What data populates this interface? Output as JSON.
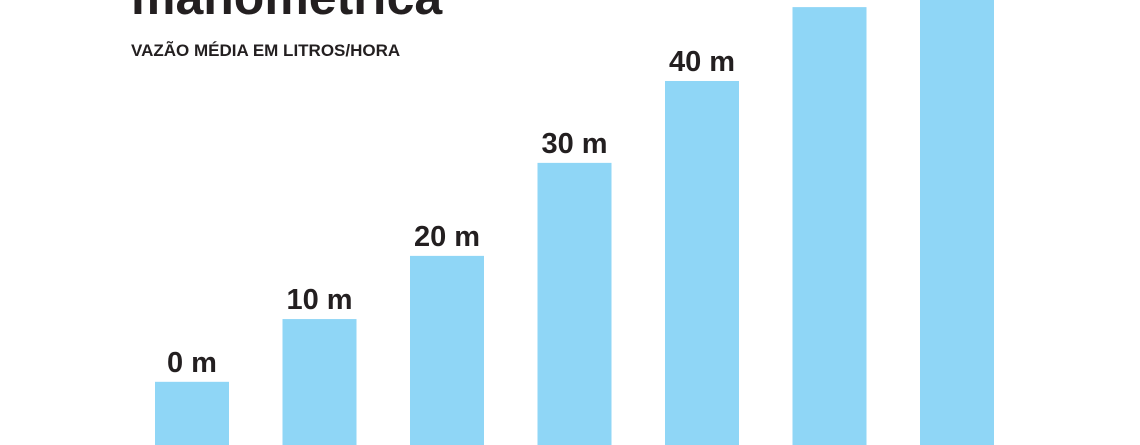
{
  "chart_data": {
    "type": "bar",
    "title": "manométrica",
    "subtitle": "VAZÃO MÉDIA EM LITROS/HORA",
    "categories": [
      "0 m",
      "10 m",
      "20 m",
      "30 m",
      "40 m",
      null,
      null
    ],
    "values": [
      14.2,
      28.3,
      42.5,
      63.4,
      81.8,
      98.4,
      105
    ],
    "color": "#8fd6f6",
    "ylim": [
      0,
      100
    ]
  }
}
